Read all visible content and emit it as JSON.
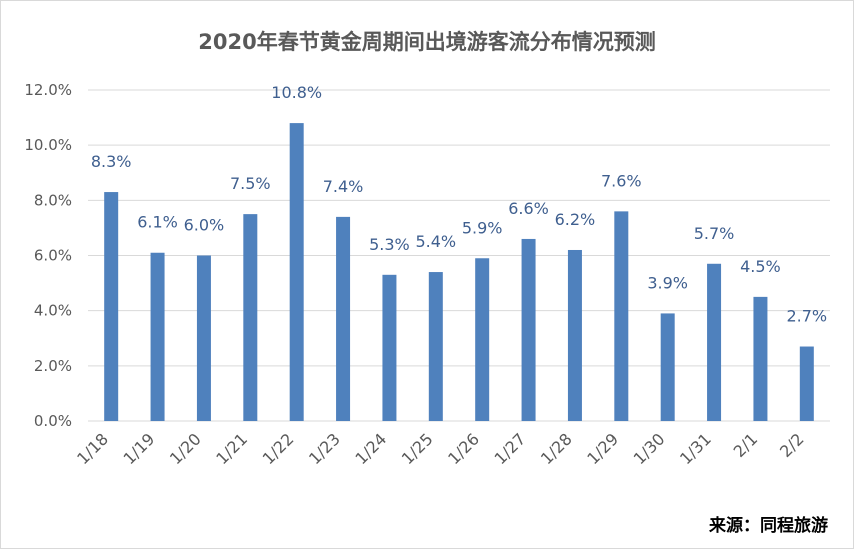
{
  "chart_data": {
    "type": "bar",
    "title": "2020年春节黄金周期间出境游客流分布情况预测",
    "source": "来源：同程旅游",
    "categories": [
      "1/18",
      "1/19",
      "1/20",
      "1/21",
      "1/22",
      "1/23",
      "1/24",
      "1/25",
      "1/26",
      "1/27",
      "1/28",
      "1/29",
      "1/30",
      "1/31",
      "2/1",
      "2/2"
    ],
    "values": [
      8.3,
      6.1,
      6.0,
      7.5,
      10.8,
      7.4,
      5.3,
      5.4,
      5.9,
      6.6,
      6.2,
      7.6,
      3.9,
      5.7,
      4.5,
      2.7
    ],
    "data_labels": [
      "8.3%",
      "6.1%",
      "6.0%",
      "7.5%",
      "10.8%",
      "7.4%",
      "5.3%",
      "5.4%",
      "5.9%",
      "6.6%",
      "6.2%",
      "7.6%",
      "3.9%",
      "5.7%",
      "4.5%",
      "2.7%"
    ],
    "yticks": [
      "0.0%",
      "2.0%",
      "4.0%",
      "6.0%",
      "8.0%",
      "10.0%",
      "12.0%"
    ],
    "ylim": [
      0,
      12
    ],
    "ystep": 2,
    "grid": true,
    "bar_color": "#4f81bd",
    "grid_color": "#d9d9d9"
  }
}
